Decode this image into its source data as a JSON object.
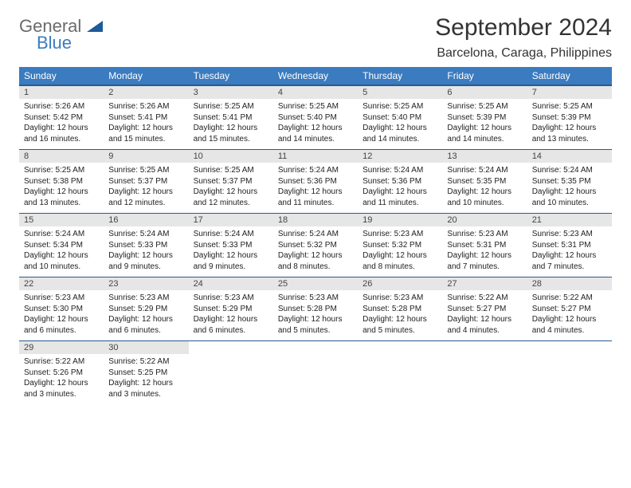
{
  "logo": {
    "general": "General",
    "blue": "Blue"
  },
  "title": "September 2024",
  "location": "Barcelona, Caraga, Philippines",
  "colors": {
    "header_bg": "#3b7bbf",
    "header_text": "#ffffff",
    "row_divider": "#2a5a8f",
    "daynum_bg": "#e6e6e6",
    "text": "#222222",
    "logo_gray": "#6b6b6b",
    "logo_blue": "#3b7bbf"
  },
  "weekdays": [
    "Sunday",
    "Monday",
    "Tuesday",
    "Wednesday",
    "Thursday",
    "Friday",
    "Saturday"
  ],
  "days": [
    {
      "n": 1,
      "sr": "5:26 AM",
      "ss": "5:42 PM",
      "dl": "12 hours and 16 minutes."
    },
    {
      "n": 2,
      "sr": "5:26 AM",
      "ss": "5:41 PM",
      "dl": "12 hours and 15 minutes."
    },
    {
      "n": 3,
      "sr": "5:25 AM",
      "ss": "5:41 PM",
      "dl": "12 hours and 15 minutes."
    },
    {
      "n": 4,
      "sr": "5:25 AM",
      "ss": "5:40 PM",
      "dl": "12 hours and 14 minutes."
    },
    {
      "n": 5,
      "sr": "5:25 AM",
      "ss": "5:40 PM",
      "dl": "12 hours and 14 minutes."
    },
    {
      "n": 6,
      "sr": "5:25 AM",
      "ss": "5:39 PM",
      "dl": "12 hours and 14 minutes."
    },
    {
      "n": 7,
      "sr": "5:25 AM",
      "ss": "5:39 PM",
      "dl": "12 hours and 13 minutes."
    },
    {
      "n": 8,
      "sr": "5:25 AM",
      "ss": "5:38 PM",
      "dl": "12 hours and 13 minutes."
    },
    {
      "n": 9,
      "sr": "5:25 AM",
      "ss": "5:37 PM",
      "dl": "12 hours and 12 minutes."
    },
    {
      "n": 10,
      "sr": "5:25 AM",
      "ss": "5:37 PM",
      "dl": "12 hours and 12 minutes."
    },
    {
      "n": 11,
      "sr": "5:24 AM",
      "ss": "5:36 PM",
      "dl": "12 hours and 11 minutes."
    },
    {
      "n": 12,
      "sr": "5:24 AM",
      "ss": "5:36 PM",
      "dl": "12 hours and 11 minutes."
    },
    {
      "n": 13,
      "sr": "5:24 AM",
      "ss": "5:35 PM",
      "dl": "12 hours and 10 minutes."
    },
    {
      "n": 14,
      "sr": "5:24 AM",
      "ss": "5:35 PM",
      "dl": "12 hours and 10 minutes."
    },
    {
      "n": 15,
      "sr": "5:24 AM",
      "ss": "5:34 PM",
      "dl": "12 hours and 10 minutes."
    },
    {
      "n": 16,
      "sr": "5:24 AM",
      "ss": "5:33 PM",
      "dl": "12 hours and 9 minutes."
    },
    {
      "n": 17,
      "sr": "5:24 AM",
      "ss": "5:33 PM",
      "dl": "12 hours and 9 minutes."
    },
    {
      "n": 18,
      "sr": "5:24 AM",
      "ss": "5:32 PM",
      "dl": "12 hours and 8 minutes."
    },
    {
      "n": 19,
      "sr": "5:23 AM",
      "ss": "5:32 PM",
      "dl": "12 hours and 8 minutes."
    },
    {
      "n": 20,
      "sr": "5:23 AM",
      "ss": "5:31 PM",
      "dl": "12 hours and 7 minutes."
    },
    {
      "n": 21,
      "sr": "5:23 AM",
      "ss": "5:31 PM",
      "dl": "12 hours and 7 minutes."
    },
    {
      "n": 22,
      "sr": "5:23 AM",
      "ss": "5:30 PM",
      "dl": "12 hours and 6 minutes."
    },
    {
      "n": 23,
      "sr": "5:23 AM",
      "ss": "5:29 PM",
      "dl": "12 hours and 6 minutes."
    },
    {
      "n": 24,
      "sr": "5:23 AM",
      "ss": "5:29 PM",
      "dl": "12 hours and 6 minutes."
    },
    {
      "n": 25,
      "sr": "5:23 AM",
      "ss": "5:28 PM",
      "dl": "12 hours and 5 minutes."
    },
    {
      "n": 26,
      "sr": "5:23 AM",
      "ss": "5:28 PM",
      "dl": "12 hours and 5 minutes."
    },
    {
      "n": 27,
      "sr": "5:22 AM",
      "ss": "5:27 PM",
      "dl": "12 hours and 4 minutes."
    },
    {
      "n": 28,
      "sr": "5:22 AM",
      "ss": "5:27 PM",
      "dl": "12 hours and 4 minutes."
    },
    {
      "n": 29,
      "sr": "5:22 AM",
      "ss": "5:26 PM",
      "dl": "12 hours and 3 minutes."
    },
    {
      "n": 30,
      "sr": "5:22 AM",
      "ss": "5:25 PM",
      "dl": "12 hours and 3 minutes."
    }
  ],
  "labels": {
    "sunrise": "Sunrise:",
    "sunset": "Sunset:",
    "daylight": "Daylight:"
  },
  "layout": {
    "first_weekday_index": 0,
    "columns": 7,
    "font_size_cell": 10,
    "font_size_header": 12
  }
}
